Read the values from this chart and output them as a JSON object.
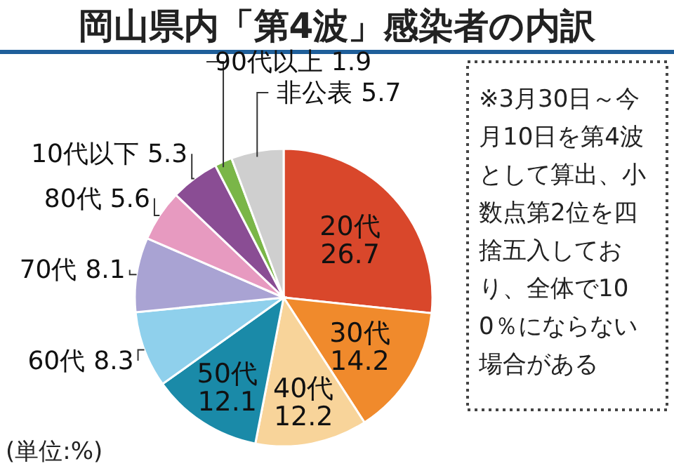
{
  "chart_data": {
    "type": "pie",
    "title": "岡山県内「第4波」感染者の内訳",
    "categories": [
      "20代",
      "30代",
      "40代",
      "50代",
      "60代",
      "70代",
      "80代",
      "10代以下",
      "90代以上",
      "非公表"
    ],
    "values": [
      26.7,
      14.2,
      12.2,
      12.1,
      8.3,
      8.1,
      5.6,
      5.3,
      1.9,
      5.7
    ],
    "colors": [
      "#d9472b",
      "#f08a2c",
      "#f8d49a",
      "#1a8aa8",
      "#8fd0ec",
      "#a9a3d3",
      "#e79ac0",
      "#8a4d94",
      "#7ab648",
      "#cfcfcf"
    ],
    "data_labels": true,
    "annotations": [
      "(単位:%)",
      "※3月30日～今月10日を第4波として算出、小数点第2位を四捨五入しており、全体で100％にならない場合がある"
    ]
  }
}
